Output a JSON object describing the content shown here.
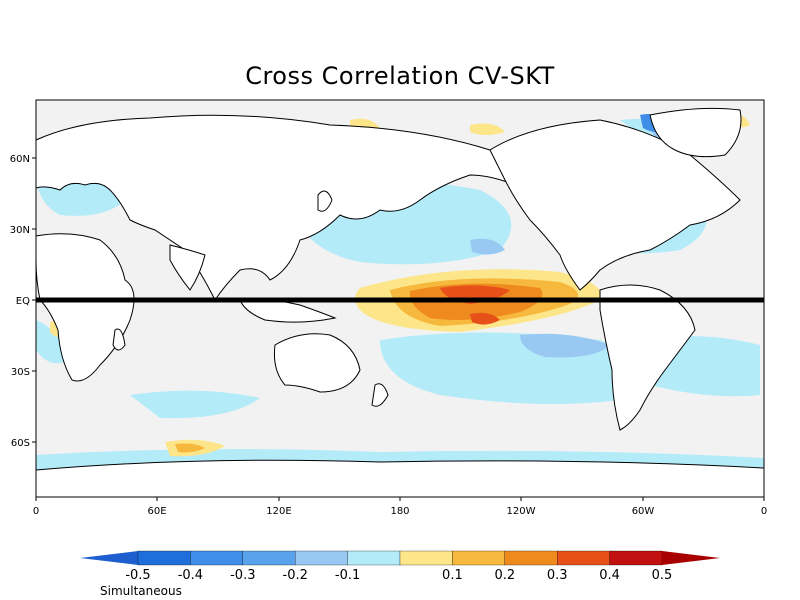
{
  "title": "Cross Correlation CV-SKT",
  "colors": {
    "background": "#f2f2f2",
    "land": "#ffffff",
    "equator_line": "#000000"
  },
  "axes": {
    "lon_labels": [
      "0",
      "60E",
      "120E",
      "180",
      "120W",
      "60W",
      "0"
    ],
    "lat_labels": [
      "60N",
      "30N",
      "EQ",
      "30S",
      "60S"
    ]
  },
  "colorbar": {
    "labels": [
      "-0.5",
      "-0.4",
      "-0.3",
      "-0.2",
      "-0.1",
      "0.1",
      "0.2",
      "0.3",
      "0.4",
      "0.5"
    ],
    "colors": [
      "#1e6fdc",
      "#3f8ee8",
      "#5aa2ec",
      "#99c9f2",
      "#b3ebf9",
      "#f7f7f7",
      "#fde68a",
      "#f7b93d",
      "#ef8a1e",
      "#e8501a",
      "#c01010"
    ],
    "low_end": "#1e5fcf",
    "high_end": "#a80000"
  },
  "caption": "Simultaneous"
}
